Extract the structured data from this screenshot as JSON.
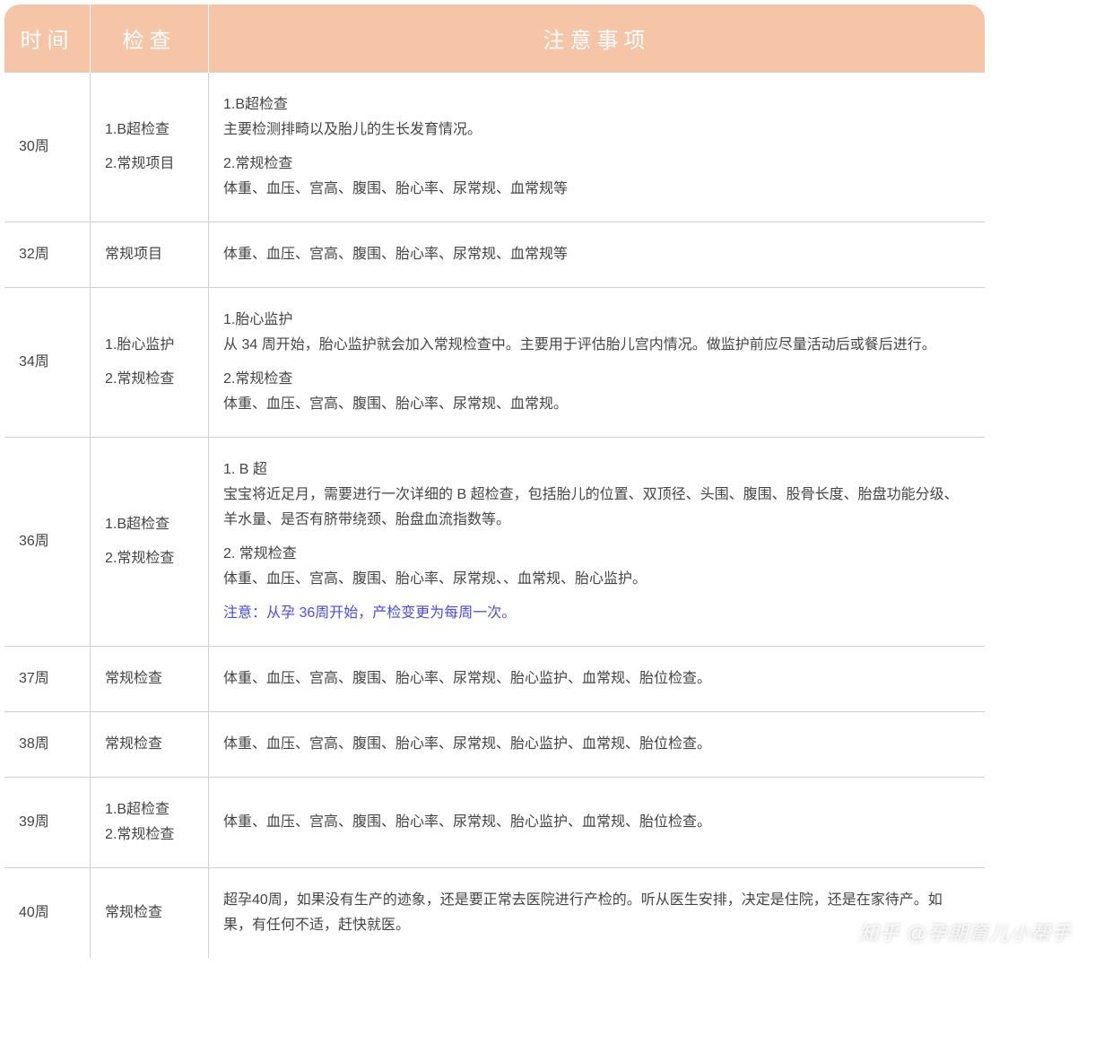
{
  "table": {
    "header": {
      "time": "时间",
      "exam": "检查",
      "notes": "注意事项"
    },
    "header_bg": "#f6c5a7",
    "header_fg": "#ffffff",
    "border_color": "#d0d0d0",
    "text_color": "#444444",
    "highlight_color": "#4a4ae8",
    "font_size_body": 16,
    "font_size_header": 24,
    "rows": [
      {
        "time": "30周",
        "exam": [
          "1.B超检查",
          "",
          "2.常规项目"
        ],
        "notes": [
          {
            "t": "1.B超检查"
          },
          {
            "t": "主要检测排畸以及胎儿的生长发育情况。"
          },
          {
            "t": ""
          },
          {
            "t": "2.常规检查"
          },
          {
            "t": "体重、血压、宫高、腹围、胎心率、尿常规、血常规等"
          }
        ]
      },
      {
        "time": "32周",
        "exam": [
          "常规项目"
        ],
        "notes": [
          {
            "t": "体重、血压、宫高、腹围、胎心率、尿常规、血常规等"
          }
        ]
      },
      {
        "time": "34周",
        "exam": [
          "1.胎心监护",
          "",
          "2.常规检查"
        ],
        "notes": [
          {
            "t": "1.胎心监护"
          },
          {
            "t": "从 34 周开始，胎心监护就会加入常规检查中。主要用于评估胎儿宫内情况。做监护前应尽量活动后或餐后进行。"
          },
          {
            "t": ""
          },
          {
            "t": "2.常规检查"
          },
          {
            "t": "体重、血压、宫高、腹围、胎心率、尿常规、血常规。"
          }
        ]
      },
      {
        "time": "36周",
        "exam": [
          "1.B超检查",
          "",
          "2.常规检查"
        ],
        "notes": [
          {
            "t": "1. B 超"
          },
          {
            "t": "宝宝将近足月，需要进行一次详细的 B 超检查，包括胎儿的位置、双顶径、头围、腹围、股骨长度、胎盘功能分级、羊水量、是否有脐带绕颈、胎盘血流指数等。"
          },
          {
            "t": ""
          },
          {
            "t": "2. 常规检查"
          },
          {
            "t": "体重、血压、宫高、腹围、胎心率、尿常规、、血常规、胎心监护。"
          },
          {
            "t": ""
          },
          {
            "t": "注意：从孕 36周开始，产检变更为每周一次。",
            "highlight": true
          }
        ]
      },
      {
        "time": "37周",
        "exam": [
          "常规检查"
        ],
        "notes": [
          {
            "t": "体重、血压、宫高、腹围、胎心率、尿常规、胎心监护、血常规、胎位检查。"
          }
        ]
      },
      {
        "time": "38周",
        "exam": [
          "常规检查"
        ],
        "notes": [
          {
            "t": "体重、血压、宫高、腹围、胎心率、尿常规、胎心监护、血常规、胎位检查。"
          }
        ]
      },
      {
        "time": "39周",
        "exam": [
          "1.B超检查",
          "2.常规检查"
        ],
        "notes": [
          {
            "t": "体重、血压、宫高、腹围、胎心率、尿常规、胎心监护、血常规、胎位检查。"
          }
        ]
      },
      {
        "time": "40周",
        "exam": [
          "常规检查"
        ],
        "notes": [
          {
            "t": "超孕40周，如果没有生产的迹象，还是要正常去医院进行产检的。听从医生安排，决定是住院，还是在家待产。如果，有任何不适，赶快就医。"
          }
        ]
      }
    ]
  },
  "watermark": "知乎 @孕期育儿小帮手"
}
